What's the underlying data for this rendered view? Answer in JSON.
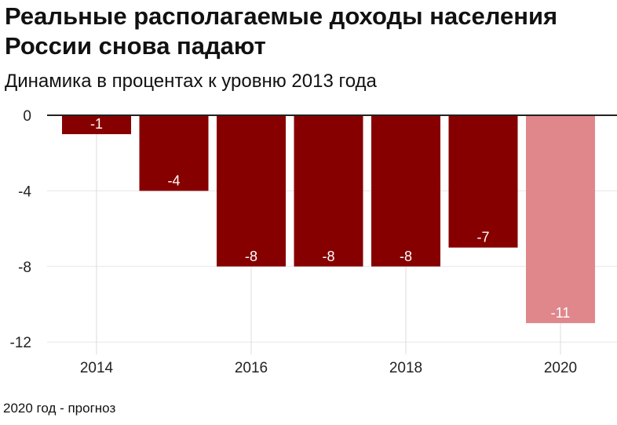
{
  "chart_data": {
    "type": "bar",
    "title": "Реальные располагаемые доходы населения России снова падают",
    "subtitle": "Динамика в процентах к уровню 2013 года",
    "footnote": "2020 год - прогноз",
    "categories": [
      "2014",
      "2015",
      "2016",
      "2017",
      "2018",
      "2019",
      "2020"
    ],
    "values": [
      -1,
      -4,
      -8,
      -8,
      -8,
      -7,
      -11
    ],
    "data_labels": [
      "-1",
      "-4",
      "-8",
      "-8",
      "-8",
      "-7",
      "-11"
    ],
    "forecast": [
      false,
      false,
      false,
      false,
      false,
      false,
      true
    ],
    "xticks": [
      "2014",
      "2016",
      "2018",
      "2020"
    ],
    "yticks": [
      0,
      -4,
      -8,
      -12
    ],
    "ylim": [
      -12.5,
      0
    ],
    "xlabel": "",
    "ylabel": "",
    "grid": true,
    "colors": {
      "actual": "#870000",
      "forecast": "#e0878c"
    }
  }
}
